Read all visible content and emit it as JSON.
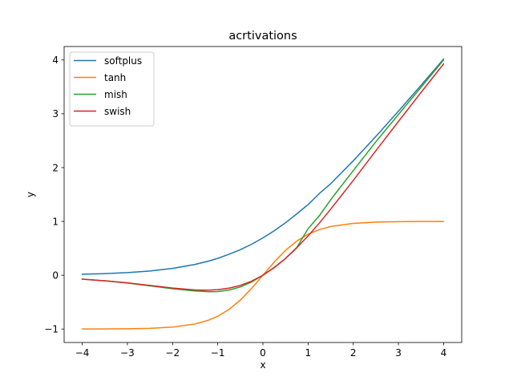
{
  "chart_data": {
    "type": "line",
    "title": "acrtivations",
    "xlabel": "x",
    "ylabel": "y",
    "xlim": [
      -4.4,
      4.4
    ],
    "ylim": [
      -1.25,
      4.25
    ],
    "xticks": [
      -4,
      -3,
      -2,
      -1,
      0,
      1,
      2,
      3,
      4
    ],
    "xtick_labels": [
      "−4",
      "−3",
      "−2",
      "−1",
      "0",
      "1",
      "2",
      "3",
      "4"
    ],
    "yticks": [
      -1,
      0,
      1,
      2,
      3,
      4
    ],
    "ytick_labels": [
      "−1",
      "0",
      "1",
      "2",
      "3",
      "4"
    ],
    "grid": false,
    "legend_position": "top-left",
    "x": [
      -4,
      -3.5,
      -3,
      -2.5,
      -2,
      -1.5,
      -1.2,
      -1,
      -0.75,
      -0.5,
      -0.25,
      0,
      0.25,
      0.5,
      0.75,
      1,
      1.25,
      1.5,
      2,
      2.5,
      3,
      3.5,
      4
    ],
    "series": [
      {
        "name": "softplus",
        "color": "#1f77b4",
        "values": [
          0.018,
          0.03,
          0.049,
          0.079,
          0.127,
          0.201,
          0.263,
          0.313,
          0.39,
          0.474,
          0.576,
          0.693,
          0.826,
          0.974,
          1.14,
          1.313,
          1.519,
          1.701,
          2.127,
          2.579,
          3.049,
          3.53,
          4.018
        ]
      },
      {
        "name": "tanh",
        "color": "#ff7f0e",
        "values": [
          -0.999,
          -0.998,
          -0.995,
          -0.987,
          -0.964,
          -0.905,
          -0.834,
          -0.762,
          -0.635,
          -0.462,
          -0.245,
          0,
          0.245,
          0.462,
          0.635,
          0.762,
          0.848,
          0.905,
          0.964,
          0.987,
          0.995,
          0.998,
          0.999
        ]
      },
      {
        "name": "mish",
        "color": "#2ca02c",
        "values": [
          -0.073,
          -0.105,
          -0.146,
          -0.197,
          -0.252,
          -0.293,
          -0.307,
          -0.303,
          -0.275,
          -0.218,
          -0.126,
          0,
          0.145,
          0.312,
          0.515,
          0.865,
          1.106,
          1.403,
          1.944,
          2.481,
          2.987,
          3.494,
          4.0
        ]
      },
      {
        "name": "swish",
        "color": "#d62728",
        "values": [
          -0.072,
          -0.103,
          -0.142,
          -0.189,
          -0.238,
          -0.274,
          -0.278,
          -0.269,
          -0.24,
          -0.189,
          -0.11,
          0,
          0.14,
          0.311,
          0.51,
          0.731,
          0.97,
          1.227,
          1.762,
          2.313,
          2.858,
          3.397,
          3.928
        ]
      }
    ]
  }
}
